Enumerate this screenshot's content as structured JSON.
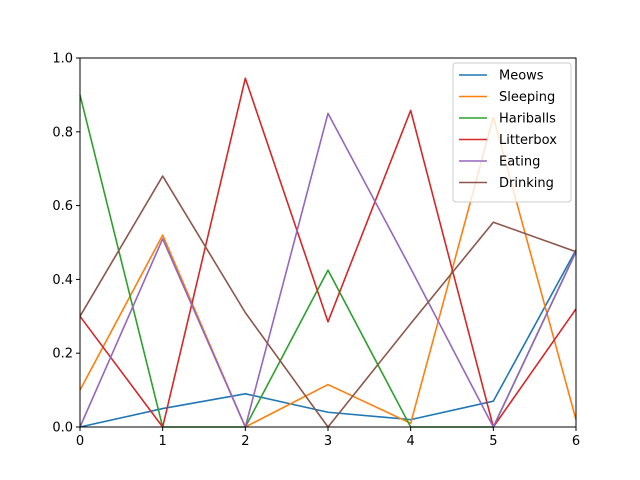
{
  "chart_data": {
    "type": "line",
    "x": [
      0,
      1,
      2,
      3,
      4,
      5,
      6
    ],
    "xlim": [
      0,
      6
    ],
    "ylim": [
      0,
      1
    ],
    "x_ticks": [
      "0",
      "1",
      "2",
      "3",
      "4",
      "5",
      "6"
    ],
    "y_ticks": [
      "0.0",
      "0.2",
      "0.4",
      "0.6",
      "0.8",
      "1.0"
    ],
    "grid": false,
    "legend_position": "top-right",
    "series": [
      {
        "name": "Meows",
        "color": "#1f77b4",
        "values": [
          0.0,
          0.05,
          0.09,
          0.04,
          0.02,
          0.07,
          0.48
        ]
      },
      {
        "name": "Sleeping",
        "color": "#ff7f0e",
        "values": [
          0.1,
          0.52,
          0.0,
          0.115,
          0.01,
          0.84,
          0.02
        ]
      },
      {
        "name": "Hariballs",
        "color": "#2ca02c",
        "values": [
          0.9,
          0.0,
          0.0,
          0.425,
          0.0,
          0.0,
          0.475
        ]
      },
      {
        "name": "Litterbox",
        "color": "#d62728",
        "values": [
          0.3,
          0.0,
          0.945,
          0.285,
          0.858,
          0.0,
          0.32
        ]
      },
      {
        "name": "Eating",
        "color": "#9467bd",
        "values": [
          0.0,
          0.51,
          0.0,
          0.85,
          0.43,
          0.0,
          0.475
        ]
      },
      {
        "name": "Drinking",
        "color": "#8c564b",
        "values": [
          0.3,
          0.68,
          0.31,
          0.0,
          0.28,
          0.555,
          0.475
        ]
      }
    ]
  }
}
